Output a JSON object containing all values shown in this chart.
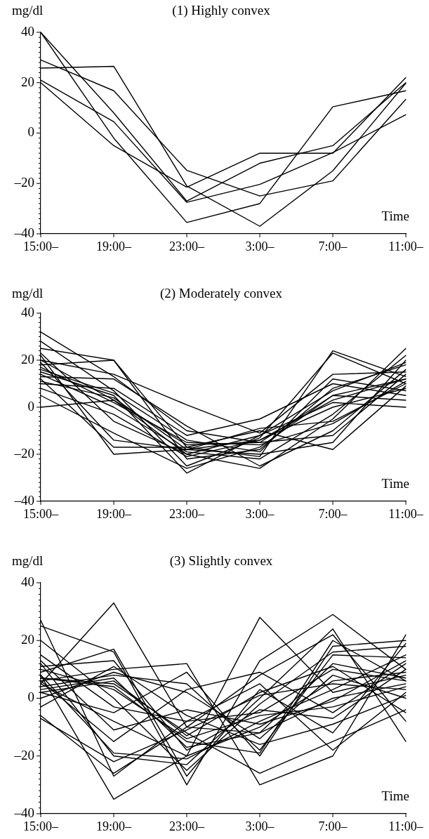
{
  "chart_data": [
    {
      "type": "line",
      "title": "(1) Highly convex",
      "ylabel": "mg/dl",
      "xlabel": "Time",
      "categories": [
        "15:00–",
        "19:00–",
        "23:00–",
        "3:00–",
        "7:00–",
        "11:00–"
      ],
      "ylim": [
        -40,
        40
      ],
      "yticks": [
        {
          "value": -40,
          "label": "–40"
        },
        {
          "value": -38,
          "label": null
        },
        {
          "value": -36,
          "label": null
        },
        {
          "value": -34,
          "label": null
        },
        {
          "value": -32,
          "label": null
        },
        {
          "value": -30,
          "label": null
        },
        {
          "value": -28,
          "label": null
        },
        {
          "value": -26,
          "label": null
        },
        {
          "value": -24,
          "label": null
        },
        {
          "value": -22,
          "label": null
        },
        {
          "value": -20,
          "label": "–20"
        },
        {
          "value": -18,
          "label": null
        },
        {
          "value": -16,
          "label": null
        },
        {
          "value": -14,
          "label": null
        },
        {
          "value": -12,
          "label": null
        },
        {
          "value": -10,
          "label": null
        },
        {
          "value": -8,
          "label": null
        },
        {
          "value": -6,
          "label": null
        },
        {
          "value": -4,
          "label": null
        },
        {
          "value": -2,
          "label": null
        },
        0,
        {
          "value": 2,
          "label": null
        },
        {
          "value": 4,
          "label": null
        },
        {
          "value": 6,
          "label": null
        },
        {
          "value": 8,
          "label": null
        },
        {
          "value": 10,
          "label": null
        },
        {
          "value": 12,
          "label": null
        },
        {
          "value": 14,
          "label": null
        },
        {
          "value": 16,
          "label": null
        },
        {
          "value": 18,
          "label": null
        },
        20,
        {
          "value": 22,
          "label": null
        },
        {
          "value": 24,
          "label": null
        },
        {
          "value": 26,
          "label": null
        },
        {
          "value": 28,
          "label": null
        },
        {
          "value": 30,
          "label": null
        },
        {
          "value": 32,
          "label": null
        },
        {
          "value": 34,
          "label": null
        },
        {
          "value": 36,
          "label": null
        },
        {
          "value": 38,
          "label": null
        },
        40
      ],
      "grid": false,
      "legend": false,
      "marker": "none",
      "line_style": "solid",
      "series": [
        {
          "color": "#000000",
          "values": [
            40,
            8,
            -27,
            -12,
            -5,
            20
          ]
        },
        {
          "color": "#000000",
          "values": [
            40,
            -2,
            -35.5,
            -28,
            10.4,
            16.8
          ]
        },
        {
          "color": "#000000",
          "values": [
            29,
            16.8,
            -14.8,
            -25,
            -19,
            13.4
          ]
        },
        {
          "color": "#000000",
          "values": [
            25.8,
            26.5,
            -21,
            -37,
            -15,
            19.8
          ]
        },
        {
          "color": "#000000",
          "values": [
            21,
            4.5,
            -27.5,
            -20.4,
            -7.8,
            7.3
          ]
        },
        {
          "color": "#000000",
          "values": [
            20,
            -5,
            -21.5,
            -8,
            -8,
            22
          ]
        }
      ]
    },
    {
      "type": "line",
      "title": "(2) Moderately convex",
      "ylabel": "mg/dl",
      "xlabel": "Time",
      "categories": [
        "15:00–",
        "19:00–",
        "23:00–",
        "3:00–",
        "7:00–",
        "11:00–"
      ],
      "ylim": [
        -40,
        40
      ],
      "yticks": [
        {
          "value": -40,
          "label": "–40"
        },
        {
          "value": -38,
          "label": null
        },
        {
          "value": -36,
          "label": null
        },
        {
          "value": -34,
          "label": null
        },
        {
          "value": -32,
          "label": null
        },
        {
          "value": -30,
          "label": null
        },
        {
          "value": -28,
          "label": null
        },
        {
          "value": -26,
          "label": null
        },
        {
          "value": -24,
          "label": null
        },
        {
          "value": -22,
          "label": null
        },
        {
          "value": -20,
          "label": "–20"
        },
        {
          "value": -18,
          "label": null
        },
        {
          "value": -16,
          "label": null
        },
        {
          "value": -14,
          "label": null
        },
        {
          "value": -12,
          "label": null
        },
        {
          "value": -10,
          "label": null
        },
        {
          "value": -8,
          "label": null
        },
        {
          "value": -6,
          "label": null
        },
        {
          "value": -4,
          "label": null
        },
        {
          "value": -2,
          "label": null
        },
        0,
        {
          "value": 2,
          "label": null
        },
        {
          "value": 4,
          "label": null
        },
        {
          "value": 6,
          "label": null
        },
        {
          "value": 8,
          "label": null
        },
        {
          "value": 10,
          "label": null
        },
        {
          "value": 12,
          "label": null
        },
        {
          "value": 14,
          "label": null
        },
        {
          "value": 16,
          "label": null
        },
        {
          "value": 18,
          "label": null
        },
        20,
        {
          "value": 22,
          "label": null
        },
        {
          "value": 24,
          "label": null
        },
        {
          "value": 26,
          "label": null
        },
        {
          "value": 28,
          "label": null
        },
        {
          "value": 30,
          "label": null
        },
        {
          "value": 32,
          "label": null
        },
        {
          "value": 34,
          "label": null
        },
        {
          "value": 36,
          "label": null
        },
        {
          "value": 38,
          "label": null
        },
        40
      ],
      "grid": false,
      "legend": false,
      "marker": "none",
      "line_style": "solid",
      "series": [
        {
          "color": "#000000",
          "values": [
            32,
            13,
            -10,
            -15,
            5,
            12
          ]
        },
        {
          "color": "#000000",
          "values": [
            25,
            20,
            -17,
            -21,
            24,
            13
          ]
        },
        {
          "color": "#000000",
          "values": [
            28,
            7,
            -25,
            -13,
            23,
            10
          ]
        },
        {
          "color": "#000000",
          "values": [
            0,
            3,
            -20,
            -26,
            -5,
            25
          ]
        },
        {
          "color": "#000000",
          "values": [
            22,
            -20,
            -18,
            -20,
            -15,
            20
          ]
        },
        {
          "color": "#000000",
          "values": [
            20,
            14,
            1,
            -11,
            14,
            15
          ]
        },
        {
          "color": "#000000",
          "values": [
            18,
            20,
            -22,
            -18,
            8,
            18
          ]
        },
        {
          "color": "#000000",
          "values": [
            15,
            5,
            -28,
            -12,
            2,
            0
          ]
        },
        {
          "color": "#000000",
          "values": [
            12,
            -17,
            -17,
            -10,
            -18,
            9
          ]
        },
        {
          "color": "#000000",
          "values": [
            10,
            8,
            -12,
            -5,
            10,
            5
          ]
        },
        {
          "color": "#000000",
          "values": [
            17,
            2,
            -15,
            -16,
            -7,
            11
          ]
        },
        {
          "color": "#000000",
          "values": [
            8,
            -3,
            -21,
            -14,
            0,
            8
          ]
        },
        {
          "color": "#000000",
          "values": [
            14,
            0,
            -19,
            -22,
            -3,
            22
          ]
        },
        {
          "color": "#000000",
          "values": [
            20,
            3,
            -16,
            -15,
            -12,
            14
          ]
        },
        {
          "color": "#000000",
          "values": [
            5,
            -11,
            -26,
            -17,
            5,
            3
          ]
        },
        {
          "color": "#000000",
          "values": [
            13,
            12,
            -8,
            -25,
            -10,
            16
          ]
        },
        {
          "color": "#000000",
          "values": [
            19,
            -14,
            -18,
            -9,
            -6,
            10
          ]
        },
        {
          "color": "#000000",
          "values": [
            16,
            6,
            -14,
            -19,
            12,
            7
          ]
        },
        {
          "color": "#000000",
          "values": [
            11,
            4,
            -18,
            -14,
            3,
            12
          ]
        },
        {
          "color": "#000000",
          "values": [
            23,
            -6,
            -20,
            -12,
            7,
            19
          ]
        }
      ]
    },
    {
      "type": "line",
      "title": "(3) Slightly convex",
      "ylabel": "mg/dl",
      "xlabel": "Time",
      "categories": [
        "15:00–",
        "19:00–",
        "23:00–",
        "3:00–",
        "7:00–",
        "11:00–"
      ],
      "ylim": [
        -40,
        40
      ],
      "yticks": [
        {
          "value": -40,
          "label": "–40"
        },
        {
          "value": -38,
          "label": null
        },
        {
          "value": -36,
          "label": null
        },
        {
          "value": -34,
          "label": null
        },
        {
          "value": -32,
          "label": null
        },
        {
          "value": -30,
          "label": null
        },
        {
          "value": -28,
          "label": null
        },
        {
          "value": -26,
          "label": null
        },
        {
          "value": -24,
          "label": null
        },
        {
          "value": -22,
          "label": null
        },
        {
          "value": -20,
          "label": "–20"
        },
        {
          "value": -18,
          "label": null
        },
        {
          "value": -16,
          "label": null
        },
        {
          "value": -14,
          "label": null
        },
        {
          "value": -12,
          "label": null
        },
        {
          "value": -10,
          "label": null
        },
        {
          "value": -8,
          "label": null
        },
        {
          "value": -6,
          "label": null
        },
        {
          "value": -4,
          "label": null
        },
        {
          "value": -2,
          "label": null
        },
        0,
        {
          "value": 2,
          "label": null
        },
        {
          "value": 4,
          "label": null
        },
        {
          "value": 6,
          "label": null
        },
        {
          "value": 8,
          "label": null
        },
        {
          "value": 10,
          "label": null
        },
        {
          "value": 12,
          "label": null
        },
        {
          "value": 14,
          "label": null
        },
        {
          "value": 16,
          "label": null
        },
        {
          "value": 18,
          "label": null
        },
        20,
        {
          "value": 22,
          "label": null
        },
        {
          "value": 24,
          "label": null
        },
        {
          "value": 26,
          "label": null
        },
        {
          "value": 28,
          "label": null
        },
        {
          "value": 30,
          "label": null
        },
        {
          "value": 32,
          "label": null
        },
        {
          "value": 34,
          "label": null
        },
        {
          "value": 36,
          "label": null
        },
        {
          "value": 38,
          "label": null
        },
        40
      ],
      "grid": false,
      "legend": false,
      "marker": "none",
      "line_style": "solid",
      "series": [
        {
          "color": "#000000",
          "values": [
            5,
            33,
            -10,
            -12,
            0,
            5
          ]
        },
        {
          "color": "#000000",
          "values": [
            27,
            -27,
            -8,
            -5,
            10,
            6
          ]
        },
        {
          "color": "#000000",
          "values": [
            8,
            -35,
            -20,
            28,
            2,
            8
          ]
        },
        {
          "color": "#000000",
          "values": [
            25,
            16,
            -30,
            13,
            29,
            10
          ]
        },
        {
          "color": "#000000",
          "values": [
            6,
            10,
            12,
            -30,
            -20,
            22
          ]
        },
        {
          "color": "#000000",
          "values": [
            12,
            -20,
            -23,
            0,
            24,
            -15
          ]
        },
        {
          "color": "#000000",
          "values": [
            2,
            -5,
            9,
            -20,
            18,
            20
          ]
        },
        {
          "color": "#000000",
          "values": [
            9,
            17,
            -27,
            3,
            -12,
            19
          ]
        },
        {
          "color": "#000000",
          "values": [
            7,
            5,
            -12,
            -26,
            -15,
            -4
          ]
        },
        {
          "color": "#000000",
          "values": [
            -6,
            -26,
            -10,
            8,
            22,
            -8
          ]
        },
        {
          "color": "#000000",
          "values": [
            4,
            8,
            5,
            -18,
            15,
            14
          ]
        },
        {
          "color": "#000000",
          "values": [
            10,
            3,
            -14,
            -6,
            -3,
            4
          ]
        },
        {
          "color": "#000000",
          "values": [
            5,
            -8,
            -20,
            -10,
            6,
            9
          ]
        },
        {
          "color": "#000000",
          "values": [
            -3,
            11,
            -6,
            -16,
            -9,
            1
          ]
        },
        {
          "color": "#000000",
          "values": [
            20,
            0,
            -25,
            -2,
            16,
            18
          ]
        },
        {
          "color": "#000000",
          "values": [
            6,
            -15,
            3,
            9,
            -5,
            12
          ]
        },
        {
          "color": "#000000",
          "values": [
            3,
            7,
            -17,
            -12,
            12,
            7
          ]
        },
        {
          "color": "#000000",
          "values": [
            15,
            -3,
            -8,
            5,
            -18,
            2
          ]
        },
        {
          "color": "#000000",
          "values": [
            8,
            -19,
            -21,
            -8,
            3,
            15
          ]
        },
        {
          "color": "#000000",
          "values": [
            0,
            9,
            2,
            -14,
            8,
            0
          ]
        },
        {
          "color": "#000000",
          "values": [
            11,
            13,
            -18,
            -4,
            -7,
            10
          ]
        },
        {
          "color": "#000000",
          "values": [
            -7,
            -22,
            -11,
            1,
            5,
            3
          ]
        },
        {
          "color": "#000000",
          "values": [
            7,
            4,
            -15,
            -19,
            20,
            6
          ]
        },
        {
          "color": "#000000",
          "values": [
            13,
            -11,
            -4,
            -9,
            -1,
            13
          ]
        },
        {
          "color": "#000000",
          "values": [
            2,
            6,
            -13,
            2,
            11,
            -5
          ]
        }
      ]
    }
  ]
}
